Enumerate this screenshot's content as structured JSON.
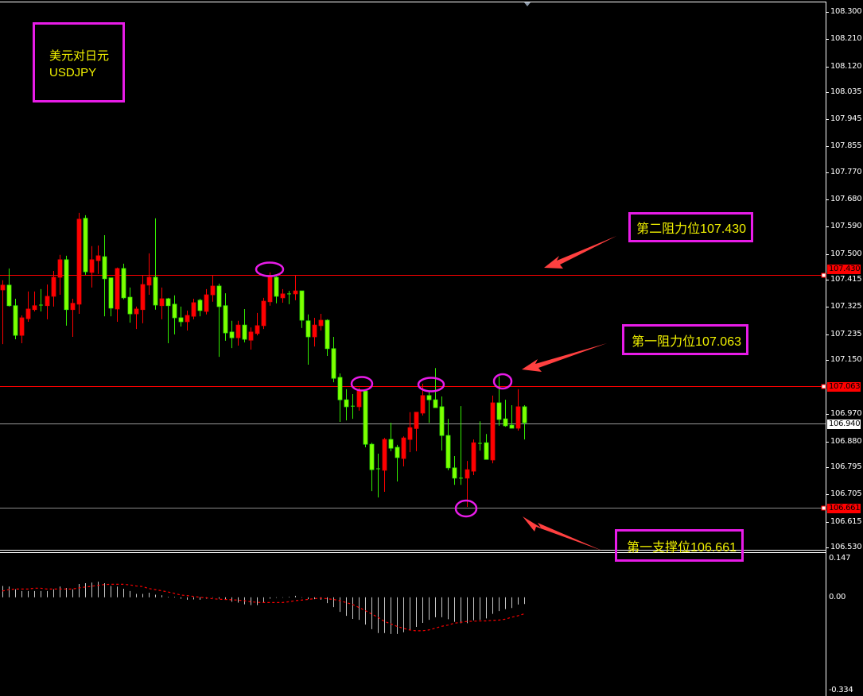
{
  "title_box": {
    "line1": "美元对日元",
    "line2": "USDJPY"
  },
  "annotations": [
    {
      "text": "第二阻力位107.430"
    },
    {
      "text": "第一阻力位107.063"
    },
    {
      "text": "第一支撑位106.661"
    }
  ],
  "colors": {
    "background": "#000000",
    "bull": "#ff0000",
    "bear": "#80ff00",
    "level_line": "#ff0000",
    "annotation_text": "#f2f200",
    "annotation_border": "#e81ce8",
    "arrow": "#ff4040",
    "macd_hist": "#c0c0c0",
    "signal": "#ff0000"
  },
  "chart_data": [
    {
      "type": "candlestick",
      "symbol": "USDJPY",
      "ylim": [
        106.53,
        108.3
      ],
      "y_ticks": [
        "108.300",
        "108.210",
        "108.120",
        "108.035",
        "107.945",
        "107.855",
        "107.770",
        "107.680",
        "107.590",
        "107.500",
        "107.415",
        "107.325",
        "107.235",
        "107.150",
        "106.970",
        "106.880",
        "106.795",
        "106.705",
        "106.615",
        "106.530"
      ],
      "levels": [
        {
          "value": "107.430",
          "kind": "resistance-2",
          "color": "#ff0000"
        },
        {
          "value": "107.063",
          "kind": "resistance-1",
          "color": "#ff0000"
        },
        {
          "value": "106.661",
          "kind": "support-1",
          "color": "#ff0000"
        }
      ],
      "current_price": "106.940",
      "ohlc": [
        [
          107.381,
          107.413,
          107.202,
          107.397
        ],
        [
          107.397,
          107.452,
          107.326,
          107.329
        ],
        [
          107.329,
          107.352,
          107.218,
          107.231
        ],
        [
          107.231,
          107.297,
          107.205,
          107.289
        ],
        [
          107.286,
          107.376,
          107.276,
          107.318
        ],
        [
          107.316,
          107.376,
          107.31,
          107.329
        ],
        [
          107.331,
          107.384,
          107.31,
          107.331
        ],
        [
          107.329,
          107.399,
          107.284,
          107.36
        ],
        [
          107.36,
          107.444,
          107.326,
          107.423
        ],
        [
          107.423,
          107.497,
          107.365,
          107.481
        ],
        [
          107.481,
          107.494,
          107.263,
          107.316
        ],
        [
          107.316,
          107.352,
          107.226,
          107.337
        ],
        [
          107.334,
          107.636,
          107.302,
          107.615
        ],
        [
          107.618,
          107.628,
          107.431,
          107.441
        ],
        [
          107.439,
          107.526,
          107.389,
          107.481
        ],
        [
          107.478,
          107.528,
          107.434,
          107.494
        ],
        [
          107.491,
          107.562,
          107.294,
          107.418
        ],
        [
          107.421,
          107.421,
          107.294,
          107.321
        ],
        [
          107.318,
          107.455,
          107.276,
          107.452
        ],
        [
          107.452,
          107.468,
          107.35,
          107.355
        ],
        [
          107.357,
          107.389,
          107.273,
          107.302
        ],
        [
          107.302,
          107.326,
          107.252,
          107.318
        ],
        [
          107.316,
          107.428,
          107.271,
          107.399
        ],
        [
          107.397,
          107.502,
          107.365,
          107.423
        ],
        [
          107.423,
          107.618,
          107.316,
          107.331
        ],
        [
          107.329,
          107.389,
          107.284,
          107.352
        ],
        [
          107.352,
          107.355,
          107.205,
          107.329
        ],
        [
          107.334,
          107.363,
          107.234,
          107.289
        ],
        [
          107.289,
          107.326,
          107.26,
          107.276
        ],
        [
          107.276,
          107.313,
          107.247,
          107.297
        ],
        [
          107.294,
          107.352,
          107.284,
          107.339
        ],
        [
          107.347,
          107.352,
          107.294,
          107.313
        ],
        [
          107.31,
          107.384,
          107.3,
          107.365
        ],
        [
          107.365,
          107.428,
          107.342,
          107.394
        ],
        [
          107.394,
          107.402,
          107.16,
          107.326
        ],
        [
          107.329,
          107.37,
          107.213,
          107.239
        ],
        [
          107.242,
          107.279,
          107.189,
          107.223
        ],
        [
          107.223,
          107.279,
          107.197,
          107.265
        ],
        [
          107.265,
          107.318,
          107.208,
          107.218
        ],
        [
          107.215,
          107.257,
          107.184,
          107.242
        ],
        [
          107.237,
          107.305,
          107.231,
          107.263
        ],
        [
          107.263,
          107.355,
          107.252,
          107.344
        ],
        [
          107.342,
          107.439,
          107.329,
          107.426
        ],
        [
          107.423,
          107.426,
          107.337,
          107.36
        ],
        [
          107.355,
          107.384,
          107.339,
          107.368
        ],
        [
          107.368,
          107.378,
          107.334,
          107.368
        ],
        [
          107.368,
          107.428,
          107.347,
          107.378
        ],
        [
          107.378,
          107.378,
          107.255,
          107.281
        ],
        [
          107.279,
          107.3,
          107.134,
          107.226
        ],
        [
          107.226,
          107.289,
          107.194,
          107.265
        ],
        [
          107.263,
          107.302,
          107.247,
          107.281
        ],
        [
          107.281,
          107.284,
          107.163,
          107.187
        ],
        [
          107.187,
          107.226,
          107.076,
          107.089
        ],
        [
          107.092,
          107.105,
          106.945,
          107.018
        ],
        [
          107.018,
          107.053,
          106.95,
          106.995
        ],
        [
          106.997,
          107.037,
          106.955,
          106.997
        ],
        [
          106.995,
          107.058,
          106.982,
          107.047
        ],
        [
          107.047,
          107.053,
          106.861,
          106.871
        ],
        [
          106.871,
          106.876,
          106.716,
          106.787
        ],
        [
          106.79,
          106.84,
          106.695,
          106.79
        ],
        [
          106.785,
          106.892,
          106.714,
          106.887
        ],
        [
          106.887,
          106.942,
          106.848,
          106.858
        ],
        [
          106.861,
          106.869,
          106.748,
          106.827
        ],
        [
          106.824,
          106.897,
          106.798,
          106.892
        ],
        [
          106.887,
          106.977,
          106.845,
          106.926
        ],
        [
          106.923,
          106.977,
          106.848,
          106.977
        ],
        [
          106.974,
          107.071,
          106.966,
          107.032
        ],
        [
          107.032,
          107.045,
          106.942,
          107.018
        ],
        [
          107.018,
          107.123,
          106.992,
          106.992
        ],
        [
          106.995,
          107.029,
          106.85,
          106.9
        ],
        [
          106.9,
          106.955,
          106.785,
          106.793
        ],
        [
          106.793,
          106.832,
          106.737,
          106.759
        ],
        [
          106.759,
          106.997,
          106.737,
          106.759
        ],
        [
          106.759,
          106.816,
          106.664,
          106.787
        ],
        [
          106.782,
          106.887,
          106.769,
          106.876
        ],
        [
          106.874,
          106.947,
          106.85,
          106.874
        ],
        [
          106.876,
          106.905,
          106.821,
          106.821
        ],
        [
          106.819,
          107.032,
          106.808,
          107.008
        ],
        [
          107.008,
          107.095,
          106.932,
          106.953
        ],
        [
          106.955,
          107.018,
          106.929,
          106.932
        ],
        [
          106.934,
          107.0,
          106.924,
          106.924
        ],
        [
          106.924,
          107.053,
          106.916,
          106.995
        ],
        [
          106.995,
          107.0,
          106.887,
          106.942
        ]
      ]
    },
    {
      "type": "bar",
      "indicator": "MACD",
      "ylim": [
        -0.334,
        0.147
      ],
      "y_ticks": [
        "0.147",
        "0.00",
        "-0.334"
      ],
      "histogram": [
        0.04,
        0.038,
        0.028,
        0.022,
        0.022,
        0.022,
        0.022,
        0.022,
        0.028,
        0.038,
        0.033,
        0.028,
        0.047,
        0.05,
        0.052,
        0.055,
        0.05,
        0.04,
        0.038,
        0.03,
        0.022,
        0.012,
        0.012,
        0.016,
        0.009,
        0.007,
        0.002,
        0.002,
        -0.005,
        -0.009,
        -0.008,
        -0.009,
        -0.005,
        0.0,
        -0.005,
        -0.009,
        -0.016,
        -0.019,
        -0.025,
        -0.028,
        -0.028,
        -0.019,
        -0.005,
        -0.002,
        0.0,
        0.002,
        0.005,
        0.0,
        -0.007,
        -0.007,
        -0.009,
        -0.021,
        -0.035,
        -0.052,
        -0.066,
        -0.077,
        -0.08,
        -0.097,
        -0.113,
        -0.127,
        -0.127,
        -0.13,
        -0.13,
        -0.124,
        -0.116,
        -0.105,
        -0.091,
        -0.08,
        -0.071,
        -0.071,
        -0.078,
        -0.087,
        -0.092,
        -0.092,
        -0.082,
        -0.08,
        -0.075,
        -0.059,
        -0.049,
        -0.042,
        -0.038,
        -0.026,
        -0.024
      ],
      "signal": [
        0.022,
        0.027,
        0.029,
        0.029,
        0.029,
        0.032,
        0.032,
        0.029,
        0.029,
        0.029,
        0.029,
        0.029,
        0.033,
        0.036,
        0.039,
        0.042,
        0.045,
        0.046,
        0.046,
        0.046,
        0.044,
        0.04,
        0.038,
        0.031,
        0.027,
        0.023,
        0.019,
        0.014,
        0.008,
        0.006,
        0.003,
        0.0,
        -0.002,
        -0.005,
        -0.007,
        -0.008,
        -0.009,
        -0.01,
        -0.012,
        -0.016,
        -0.018,
        -0.019,
        -0.019,
        -0.019,
        -0.019,
        -0.016,
        -0.012,
        -0.01,
        -0.008,
        -0.005,
        -0.003,
        -0.005,
        -0.008,
        -0.012,
        -0.019,
        -0.025,
        -0.036,
        -0.047,
        -0.059,
        -0.071,
        -0.085,
        -0.094,
        -0.103,
        -0.11,
        -0.116,
        -0.119,
        -0.119,
        -0.116,
        -0.11,
        -0.103,
        -0.099,
        -0.092,
        -0.089,
        -0.086,
        -0.085,
        -0.084,
        -0.084,
        -0.082,
        -0.081,
        -0.078,
        -0.071,
        -0.066,
        -0.059
      ]
    }
  ]
}
